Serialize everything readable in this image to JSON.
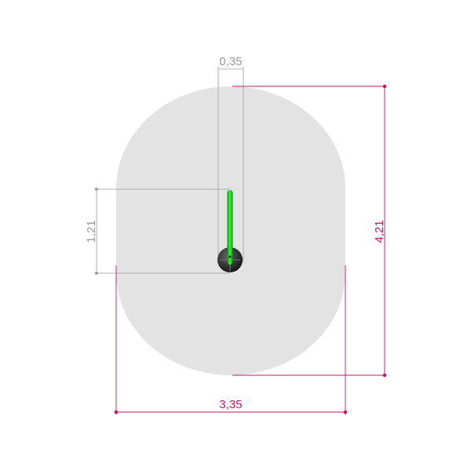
{
  "dimensions": {
    "width_label": "3,35",
    "height_label": "4,21",
    "slot_width_label": "0,35",
    "slot_depth_label": "1,21"
  },
  "colors": {
    "profile": "#e3e3e3",
    "dimension_main": "#c8106a",
    "dimension_secondary": "#9a9a9a",
    "lip": "#22dd22",
    "bulb": "#1a1a1a"
  }
}
